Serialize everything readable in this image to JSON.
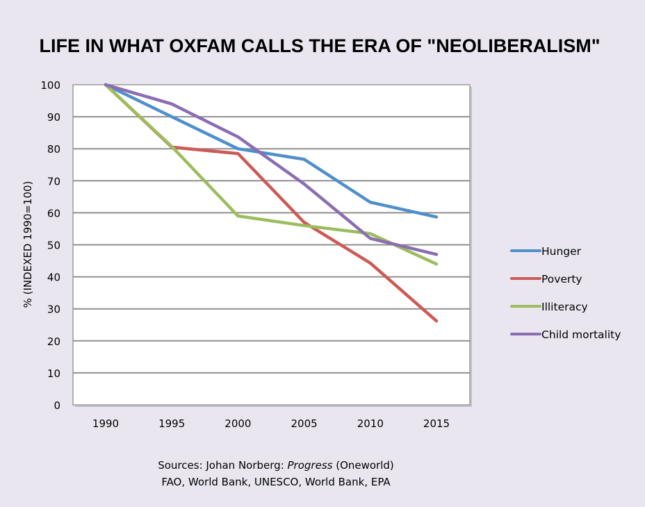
{
  "chart_data": {
    "type": "line",
    "title": "LIFE IN WHAT OXFAM CALLS THE ERA OF \"NEOLIBERALISM\"",
    "xlabel": "",
    "ylabel": "% (INDEXED 1990=100)",
    "ylim": [
      0,
      100
    ],
    "yticks": [
      "0",
      "10",
      "20",
      "30",
      "40",
      "50",
      "60",
      "70",
      "80",
      "90",
      "100"
    ],
    "ytick_values": [
      0,
      10,
      20,
      30,
      40,
      50,
      60,
      70,
      80,
      90,
      100
    ],
    "categories": [
      "1990",
      "1995",
      "2000",
      "2005",
      "2010",
      "2015"
    ],
    "grid": true,
    "legend_position": "right",
    "series": [
      {
        "name": "Hunger",
        "color": "#4f8fcb",
        "values": [
          100,
          90,
          80,
          76.7,
          63.3,
          58.7
        ]
      },
      {
        "name": "Poverty",
        "color": "#cc5a55",
        "values": [
          100,
          80.5,
          78.5,
          57,
          44.3,
          26.2
        ]
      },
      {
        "name": "Illiteracy",
        "color": "#9bbd5e",
        "values": [
          100,
          80.7,
          59,
          56,
          53.5,
          44
        ]
      },
      {
        "name": "Child mortality",
        "color": "#8b6db2",
        "values": [
          100,
          94,
          83.7,
          69,
          52,
          47
        ]
      }
    ]
  },
  "sources": {
    "line1_prefix": "Sources: Johan Norberg: ",
    "line1_italic": "Progress",
    "line1_suffix": " (Oneworld)",
    "line2": "FAO, World Bank, UNESCO, World Bank, EPA"
  }
}
